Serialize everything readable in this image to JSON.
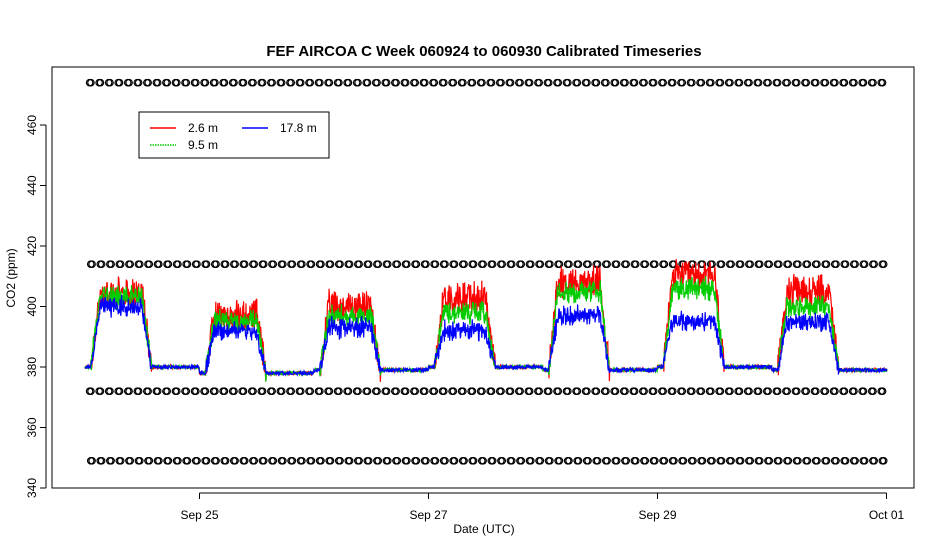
{
  "chart_data": {
    "type": "line",
    "title": "FEF AIRCOA C  Week 060924 to 060930  Calibrated Timeseries",
    "xlabel": "Date (UTC)",
    "ylabel": "CO2 (ppm)",
    "x_start": "2006-09-24",
    "x_end": "2006-10-01",
    "xlim": [
      "2006-09-24 00:00",
      "2006-10-01 06:00"
    ],
    "ylim": [
      340,
      475
    ],
    "x_ticks": [
      {
        "date": "2006-09-25",
        "label": "Sep 25"
      },
      {
        "date": "2006-09-27",
        "label": "Sep 27"
      },
      {
        "date": "2006-09-29",
        "label": "Sep 29"
      },
      {
        "date": "2006-10-01",
        "label": "Oct 01"
      }
    ],
    "y_ticks": [
      340,
      360,
      380,
      400,
      420,
      440,
      460
    ],
    "legend_position": "top-left",
    "series": [
      {
        "name": "2.6 m",
        "color": "#ff0000"
      },
      {
        "name": "9.5 m",
        "color": "#00cc00"
      },
      {
        "name": "17.8 m",
        "color": "#0000ff"
      }
    ],
    "daily_profile": [
      {
        "date": "2006-09-24",
        "night_ppm": 380,
        "day_2.6m": 404,
        "day_9.5m": 403,
        "day_17.8m": 400
      },
      {
        "date": "2006-09-25",
        "night_ppm": 378,
        "day_2.6m": 397,
        "day_9.5m": 395,
        "day_17.8m": 392
      },
      {
        "date": "2006-09-26",
        "night_ppm": 379,
        "day_2.6m": 400,
        "day_9.5m": 397,
        "day_17.8m": 393
      },
      {
        "date": "2006-09-27",
        "night_ppm": 380,
        "day_2.6m": 403,
        "day_9.5m": 398,
        "day_17.8m": 392
      },
      {
        "date": "2006-09-28",
        "night_ppm": 379,
        "day_2.6m": 408,
        "day_9.5m": 405,
        "day_17.8m": 397
      },
      {
        "date": "2006-09-29",
        "night_ppm": 380,
        "day_2.6m": 410,
        "day_9.5m": 406,
        "day_17.8m": 395
      },
      {
        "date": "2006-09-30",
        "night_ppm": 379,
        "day_2.6m": 405,
        "day_9.5m": 400,
        "day_17.8m": 395
      }
    ],
    "calibration_levels_ppm": [
      474,
      414,
      372,
      349
    ]
  }
}
